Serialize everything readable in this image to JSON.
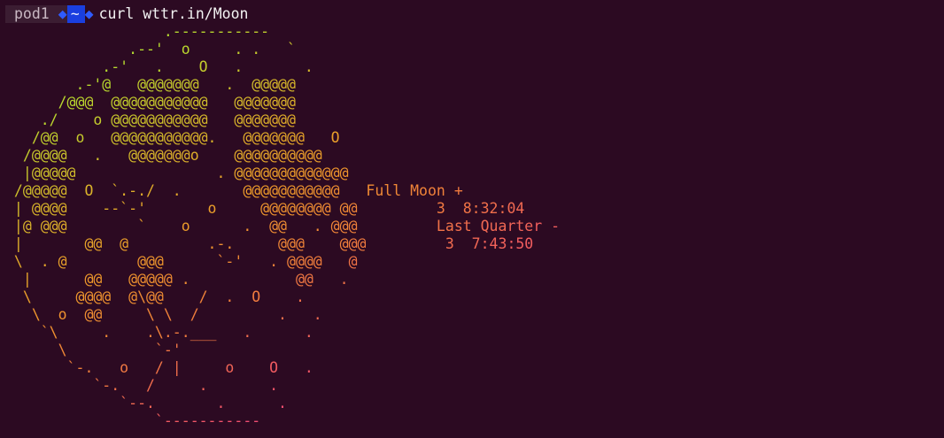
{
  "terminal": {
    "host": "pod1",
    "directory": "~",
    "command": "curl wttr.in/Moon"
  },
  "moon_art": {
    "lines": [
      "                  .-----------",
      "              .--'  o     . .   `",
      "           .-'   .    O   .       .",
      "        .-'@   @@@@@@@   .  @@@@@",
      "      /@@@  @@@@@@@@@@@   @@@@@@@",
      "    ./    o @@@@@@@@@@@   @@@@@@@",
      "   /@@  o   @@@@@@@@@@@.   @@@@@@@   O",
      "  /@@@@   .   @@@@@@@o    @@@@@@@@@@",
      "  |@@@@@                . @@@@@@@@@@@@@",
      " /@@@@@  O  `.-./  .       @@@@@@@@@@@   Full Moon +",
      " | @@@@    --`-'       o     @@@@@@@@ @@         3  8:32:04",
      " |@ @@@        `    o      .  @@   . @@@         Last Quarter -",
      " |       @@  @         .-.     @@@    @@@         3  7:43:50",
      " \\  . @        @@@      `-'   . @@@@   @",
      "  |      @@   @@@@@ .            @@   .",
      "  \\     @@@@  @\\@@    /  .  O    .",
      "   \\  o  @@     \\ \\  /         .   .",
      "    `\\     .    .\\.-.___   .      .",
      "      \\          `-'",
      "       `-.   o   / |     o    O   .",
      "          `-.   /     .       .",
      "             `--.       .      .",
      "                 `-----------"
    ]
  },
  "moon_info": {
    "phase": "Full Moon +",
    "phase_elapsed": "3  8:32:04",
    "next_phase": "Last Quarter -",
    "next_phase_in": "3  7:43:50"
  },
  "colors": {
    "background": "#2c0a22",
    "gradient": [
      "#a8e63a",
      "#b8d82e",
      "#d8b62a",
      "#ee9a2a",
      "#f07e3c",
      "#f25a62",
      "#f23c8c",
      "#f024b4"
    ]
  }
}
